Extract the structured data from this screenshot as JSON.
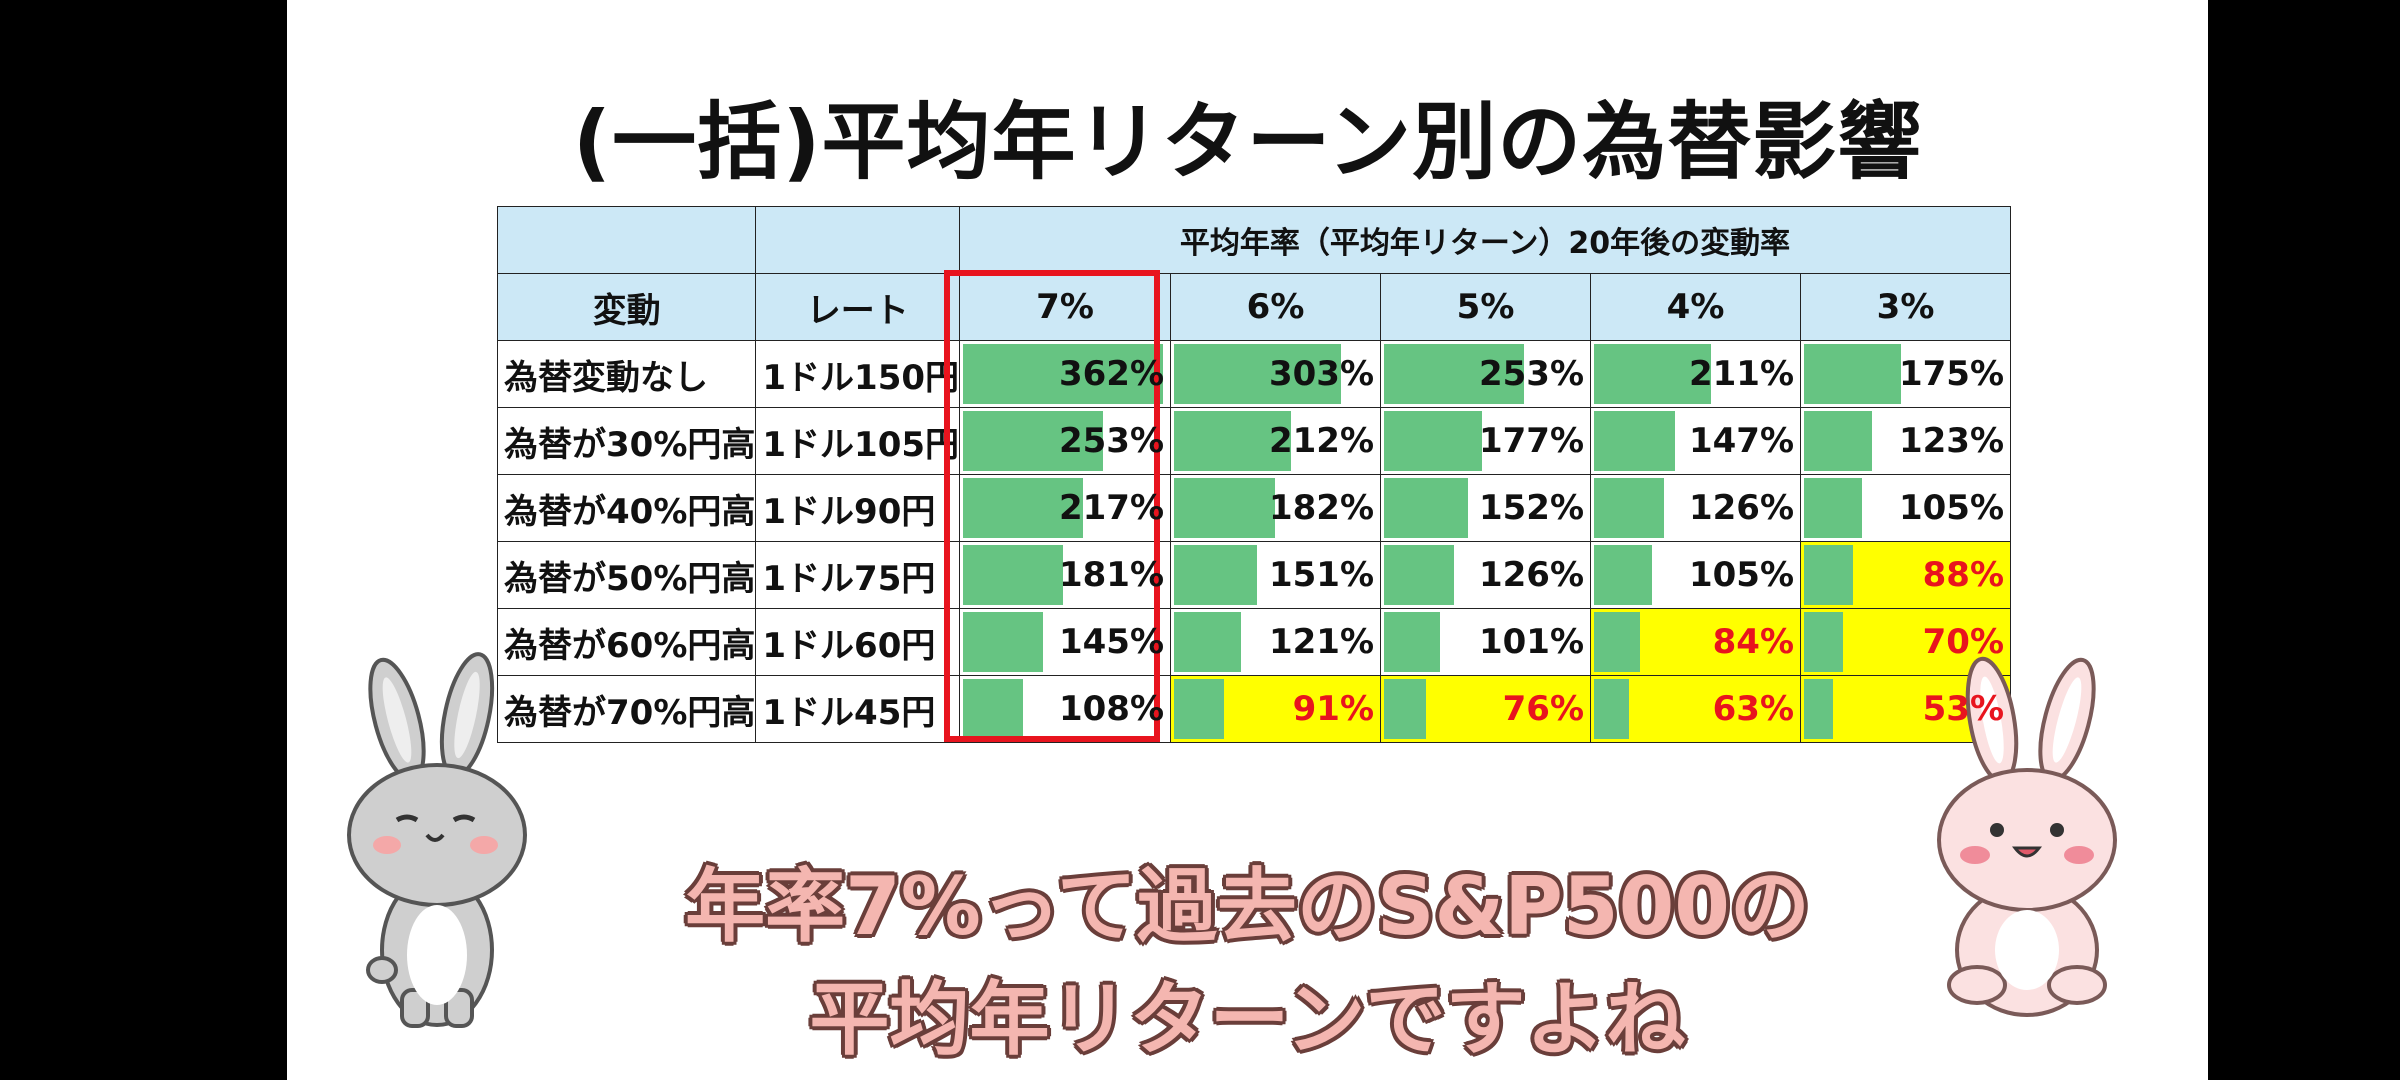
{
  "title": "(一括)平均年リターン別の為替影響",
  "table": {
    "group_header": "平均年率（平均年リターン）20年後の変動率",
    "col_headers": [
      "変動",
      "レート",
      "7%",
      "6%",
      "5%",
      "4%",
      "3%"
    ],
    "rows": [
      {
        "label": "為替変動なし",
        "rate": "1ドル150円",
        "values": [
          "362%",
          "303%",
          "253%",
          "211%",
          "175%"
        ],
        "nums": [
          362,
          303,
          253,
          211,
          175
        ]
      },
      {
        "label": "為替が30%円高",
        "rate": "1ドル105円",
        "values": [
          "253%",
          "212%",
          "177%",
          "147%",
          "123%"
        ],
        "nums": [
          253,
          212,
          177,
          147,
          123
        ]
      },
      {
        "label": "為替が40%円高",
        "rate": "1ドル90円",
        "values": [
          "217%",
          "182%",
          "152%",
          "126%",
          "105%"
        ],
        "nums": [
          217,
          182,
          152,
          126,
          105
        ]
      },
      {
        "label": "為替が50%円高",
        "rate": "1ドル75円",
        "values": [
          "181%",
          "151%",
          "126%",
          "105%",
          "88%"
        ],
        "nums": [
          181,
          151,
          126,
          105,
          88
        ]
      },
      {
        "label": "為替が60%円高",
        "rate": "1ドル60円",
        "values": [
          "145%",
          "121%",
          "101%",
          "84%",
          "70%"
        ],
        "nums": [
          145,
          121,
          101,
          84,
          70
        ]
      },
      {
        "label": "為替が70%円高",
        "rate": "1ドル45円",
        "values": [
          "108%",
          "91%",
          "76%",
          "63%",
          "53%"
        ],
        "nums": [
          108,
          91,
          76,
          63,
          53
        ]
      }
    ],
    "highlight_column": "7%"
  },
  "caption": {
    "line1": "年率7%って過去のS&P500の",
    "line2": "平均年リターンですよね"
  },
  "colors": {
    "header_bg": "#cce8f6",
    "bar": "#66c482",
    "below_100_bg": "#ffff00",
    "below_100_text": "#e8141e",
    "highlight_border": "#e8141e",
    "caption_fill": "#f4b6b0",
    "caption_outline": "#6a3e3a"
  }
}
